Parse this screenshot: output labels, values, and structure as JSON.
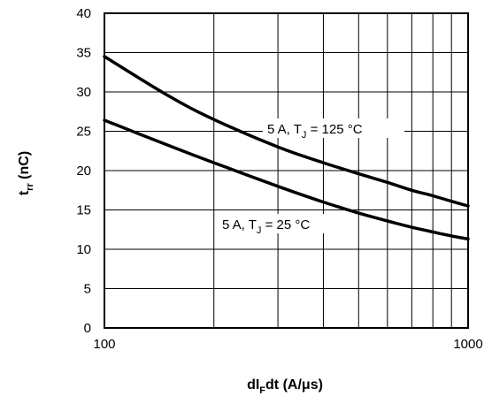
{
  "chart_data": {
    "type": "line",
    "x_scale": "log",
    "xlabel": {
      "main": "dI",
      "sub": "F",
      "rest": "dt (A/μs)"
    },
    "ylabel": {
      "main": "t",
      "sub": "rr",
      "rest": " (nC)"
    },
    "xlim": [
      100,
      1000
    ],
    "ylim": [
      0,
      40
    ],
    "x_ticks": [
      "100",
      "1000"
    ],
    "y_ticks": [
      "0",
      "5",
      "10",
      "15",
      "20",
      "25",
      "30",
      "35",
      "40"
    ],
    "grid": true,
    "series": [
      {
        "name": {
          "a": "5 A, T",
          "sub": "J",
          "b": " = 125 °C"
        },
        "points": [
          [
            100,
            34.5
          ],
          [
            150,
            29.5
          ],
          [
            200,
            26.5
          ],
          [
            300,
            23.0
          ],
          [
            400,
            21.0
          ],
          [
            500,
            19.6
          ],
          [
            600,
            18.5
          ],
          [
            700,
            17.5
          ],
          [
            800,
            16.8
          ],
          [
            900,
            16.1
          ],
          [
            1000,
            15.5
          ]
        ]
      },
      {
        "name": {
          "a": "5 A, T",
          "sub": "J",
          "b": " = 25 °C"
        },
        "points": [
          [
            100,
            26.4
          ],
          [
            150,
            23.2
          ],
          [
            200,
            21.0
          ],
          [
            300,
            18.0
          ],
          [
            400,
            16.0
          ],
          [
            500,
            14.6
          ],
          [
            600,
            13.6
          ],
          [
            700,
            12.8
          ],
          [
            800,
            12.2
          ],
          [
            900,
            11.7
          ],
          [
            1000,
            11.3
          ]
        ]
      }
    ]
  }
}
